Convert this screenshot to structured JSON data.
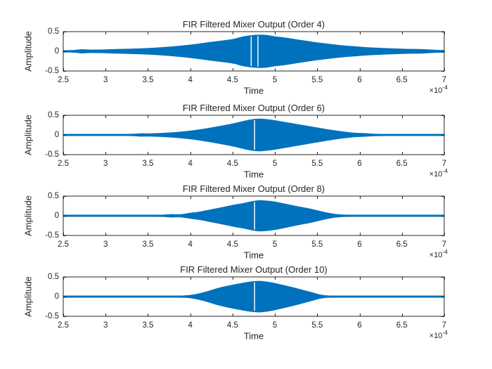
{
  "figure": {
    "background": "#ffffff"
  },
  "colors": {
    "line_blue": "#0072BD",
    "axis": "#262626",
    "text": "#262626",
    "notch_white": "#ffffff"
  },
  "chart_data": [
    {
      "type": "area",
      "title": "FIR Filtered Mixer Output (Order 4)",
      "xlabel": "Time",
      "ylabel": "Amplitude",
      "x_scale_prefix": "×10",
      "x_scale_exponent": "-4",
      "xlim": [
        2.5,
        7
      ],
      "ylim": [
        -0.5,
        0.5
      ],
      "x_ticks": [
        2.5,
        3,
        3.5,
        4,
        4.5,
        5,
        5.5,
        6,
        6.5,
        7
      ],
      "x_tick_labels": [
        "2.5",
        "3",
        "3.5",
        "4",
        "4.5",
        "5",
        "5.5",
        "6",
        "6.5",
        "7"
      ],
      "y_ticks": [
        0.5,
        0,
        -0.5
      ],
      "y_tick_labels": [
        "0.5",
        "0",
        "-0.5"
      ],
      "grid": false,
      "legend": null,
      "envelope": {
        "x": [
          2.5,
          2.62,
          2.72,
          2.82,
          3.0,
          3.25,
          3.5,
          3.75,
          4.0,
          4.25,
          4.5,
          4.62,
          4.75,
          4.88,
          5.0,
          5.12,
          5.25,
          5.38,
          5.5,
          5.62,
          5.75,
          5.88,
          6.0,
          6.12,
          6.25,
          6.38,
          6.5,
          6.6,
          6.72,
          6.82,
          6.9,
          7.0
        ],
        "amp": [
          0.024,
          0.028,
          0.046,
          0.038,
          0.044,
          0.06,
          0.078,
          0.113,
          0.165,
          0.235,
          0.305,
          0.37,
          0.41,
          0.415,
          0.375,
          0.345,
          0.3,
          0.26,
          0.22,
          0.19,
          0.158,
          0.133,
          0.113,
          0.096,
          0.082,
          0.07,
          0.061,
          0.055,
          0.052,
          0.041,
          0.033,
          0.026
        ]
      },
      "notches_x": [
        4.72,
        4.8
      ]
    },
    {
      "type": "area",
      "title": "FIR Filtered Mixer Output (Order 6)",
      "xlabel": "Time",
      "ylabel": "Amplitude",
      "x_scale_prefix": "×10",
      "x_scale_exponent": "-4",
      "xlim": [
        2.5,
        7
      ],
      "ylim": [
        -0.5,
        0.5
      ],
      "x_ticks": [
        2.5,
        3,
        3.5,
        4,
        4.5,
        5,
        5.5,
        6,
        6.5,
        7
      ],
      "x_tick_labels": [
        "2.5",
        "3",
        "3.5",
        "4",
        "4.5",
        "5",
        "5.5",
        "6",
        "6.5",
        "7"
      ],
      "y_ticks": [
        0.5,
        0,
        -0.5
      ],
      "y_tick_labels": [
        "0.5",
        "0",
        "-0.5"
      ],
      "grid": false,
      "legend": null,
      "envelope": {
        "x": [
          2.5,
          3.0,
          3.25,
          3.34,
          3.42,
          3.52,
          3.66,
          3.87,
          4.0,
          4.12,
          4.25,
          4.38,
          4.5,
          4.62,
          4.72,
          4.82,
          4.95,
          5.05,
          5.2,
          5.35,
          5.5,
          5.65,
          5.8,
          5.95,
          6.07,
          6.17,
          6.3,
          6.6,
          7.0
        ],
        "amp": [
          0.021,
          0.021,
          0.022,
          0.026,
          0.036,
          0.034,
          0.045,
          0.075,
          0.105,
          0.14,
          0.185,
          0.235,
          0.285,
          0.345,
          0.39,
          0.41,
          0.385,
          0.35,
          0.295,
          0.24,
          0.185,
          0.13,
          0.085,
          0.05,
          0.04,
          0.026,
          0.021,
          0.021,
          0.021
        ]
      },
      "notches_x": [
        4.76
      ]
    },
    {
      "type": "area",
      "title": "FIR Filtered Mixer Output (Order 8)",
      "xlabel": "Time",
      "ylabel": "Amplitude",
      "x_scale_prefix": "×10",
      "x_scale_exponent": "-4",
      "xlim": [
        2.5,
        7
      ],
      "ylim": [
        -0.5,
        0.5
      ],
      "x_ticks": [
        2.5,
        3,
        3.5,
        4,
        4.5,
        5,
        5.5,
        6,
        6.5,
        7
      ],
      "x_tick_labels": [
        "2.5",
        "3",
        "3.5",
        "4",
        "4.5",
        "5",
        "5.5",
        "6",
        "6.5",
        "7"
      ],
      "y_ticks": [
        0.5,
        0,
        -0.5
      ],
      "y_tick_labels": [
        "0.5",
        "0",
        "-0.5"
      ],
      "grid": false,
      "legend": null,
      "envelope": {
        "x": [
          2.5,
          3.3,
          3.55,
          3.68,
          3.78,
          3.88,
          4.0,
          4.12,
          4.25,
          4.38,
          4.5,
          4.62,
          4.72,
          4.82,
          4.95,
          5.05,
          5.25,
          5.4,
          5.5,
          5.62,
          5.72,
          5.82,
          5.95,
          6.5,
          7.0
        ],
        "amp": [
          0.021,
          0.021,
          0.021,
          0.024,
          0.036,
          0.034,
          0.07,
          0.105,
          0.16,
          0.215,
          0.27,
          0.315,
          0.36,
          0.39,
          0.37,
          0.335,
          0.245,
          0.185,
          0.135,
          0.075,
          0.04,
          0.024,
          0.021,
          0.021,
          0.021
        ]
      },
      "notches_x": [
        4.76
      ]
    },
    {
      "type": "area",
      "title": "FIR Filtered Mixer Output (Order 10)",
      "xlabel": "Time",
      "ylabel": "Amplitude",
      "x_scale_prefix": "×10",
      "x_scale_exponent": "-4",
      "xlim": [
        2.5,
        7
      ],
      "ylim": [
        -0.5,
        0.5
      ],
      "x_ticks": [
        2.5,
        3,
        3.5,
        4,
        4.5,
        5,
        5.5,
        6,
        6.5,
        7
      ],
      "x_tick_labels": [
        "2.5",
        "3",
        "3.5",
        "4",
        "4.5",
        "5",
        "5.5",
        "6",
        "6.5",
        "7"
      ],
      "y_ticks": [
        0.5,
        0,
        -0.5
      ],
      "y_tick_labels": [
        "0.5",
        "0",
        "-0.5"
      ],
      "grid": false,
      "legend": null,
      "envelope": {
        "x": [
          2.5,
          3.5,
          3.8,
          3.92,
          4.0,
          4.1,
          4.2,
          4.32,
          4.45,
          4.58,
          4.7,
          4.82,
          4.95,
          5.05,
          5.18,
          5.3,
          5.42,
          5.52,
          5.6,
          5.68,
          5.8,
          6.4,
          7.0
        ],
        "amp": [
          0.021,
          0.021,
          0.021,
          0.024,
          0.036,
          0.075,
          0.13,
          0.21,
          0.275,
          0.33,
          0.375,
          0.395,
          0.36,
          0.315,
          0.25,
          0.185,
          0.115,
          0.055,
          0.028,
          0.021,
          0.021,
          0.021,
          0.021
        ]
      },
      "notches_x": [
        4.76
      ]
    }
  ]
}
